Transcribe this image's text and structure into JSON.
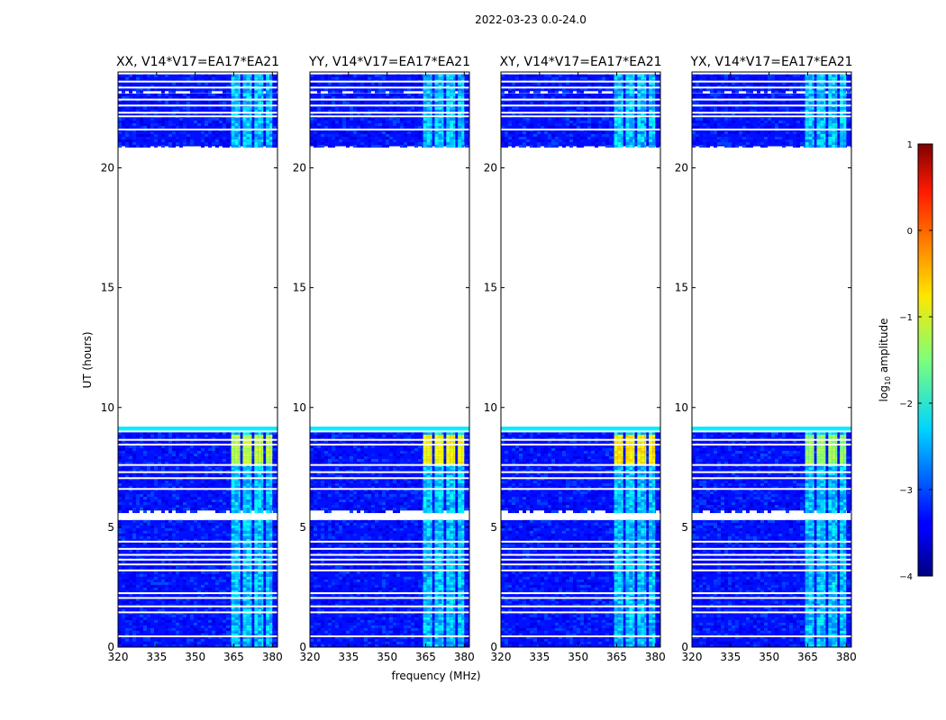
{
  "figure_title": "2022-03-23 0.0-24.0",
  "chart_data": {
    "type": "heatmap",
    "title": "2022-03-23 0.0-24.0",
    "xlabel": "frequency (MHz)",
    "ylabel": "UT (hours)",
    "xlim": [
      320,
      382
    ],
    "ylim": [
      0,
      24
    ],
    "xticks": [
      320,
      335,
      350,
      365,
      380
    ],
    "yticks": [
      0,
      5,
      10,
      15,
      20
    ],
    "panels": [
      {
        "title": "XX, V14*V17=EA17*EA21",
        "rfi_level": -1.2
      },
      {
        "title": "YY, V14*V17=EA17*EA21",
        "rfi_level": -0.9
      },
      {
        "title": "XY, V14*V17=EA17*EA21",
        "rfi_level": -0.8
      },
      {
        "title": "YX, V14*V17=EA17*EA21",
        "rfi_level": -1.4
      }
    ],
    "data_blocks_hours": [
      [
        0,
        5.3
      ],
      [
        5.7,
        9.2
      ],
      [
        20.9,
        23.1
      ],
      [
        23.2,
        23.9
      ]
    ],
    "flagged_rows_hours": [
      0.45,
      1.45,
      1.7,
      2.05,
      2.25,
      3.2,
      3.45,
      3.65,
      3.85,
      4.1,
      4.4,
      6.6,
      7.05,
      7.3,
      7.6,
      8.45,
      8.65,
      9.0,
      21.6,
      22.15,
      22.3,
      22.6,
      22.85,
      23.35,
      23.6
    ],
    "rfi_channels_mhz": [
      [
        364.0,
        367.5
      ],
      [
        368.5,
        372.0
      ],
      [
        373.0,
        376.5
      ],
      [
        377.5,
        380.0
      ]
    ],
    "rfi_strong_hours": [
      7.7,
      8.9
    ],
    "background_level": -3.3,
    "colorbar": {
      "label": "log10 amplitude",
      "label_main": "log",
      "label_sub": "10",
      "label_rest": " amplitude",
      "min": -4,
      "max": 1,
      "ticks": [
        "1",
        "0",
        "−1",
        "−2",
        "−3",
        "−4"
      ],
      "tick_values": [
        1,
        0,
        -1,
        -2,
        -3,
        -4
      ]
    }
  }
}
